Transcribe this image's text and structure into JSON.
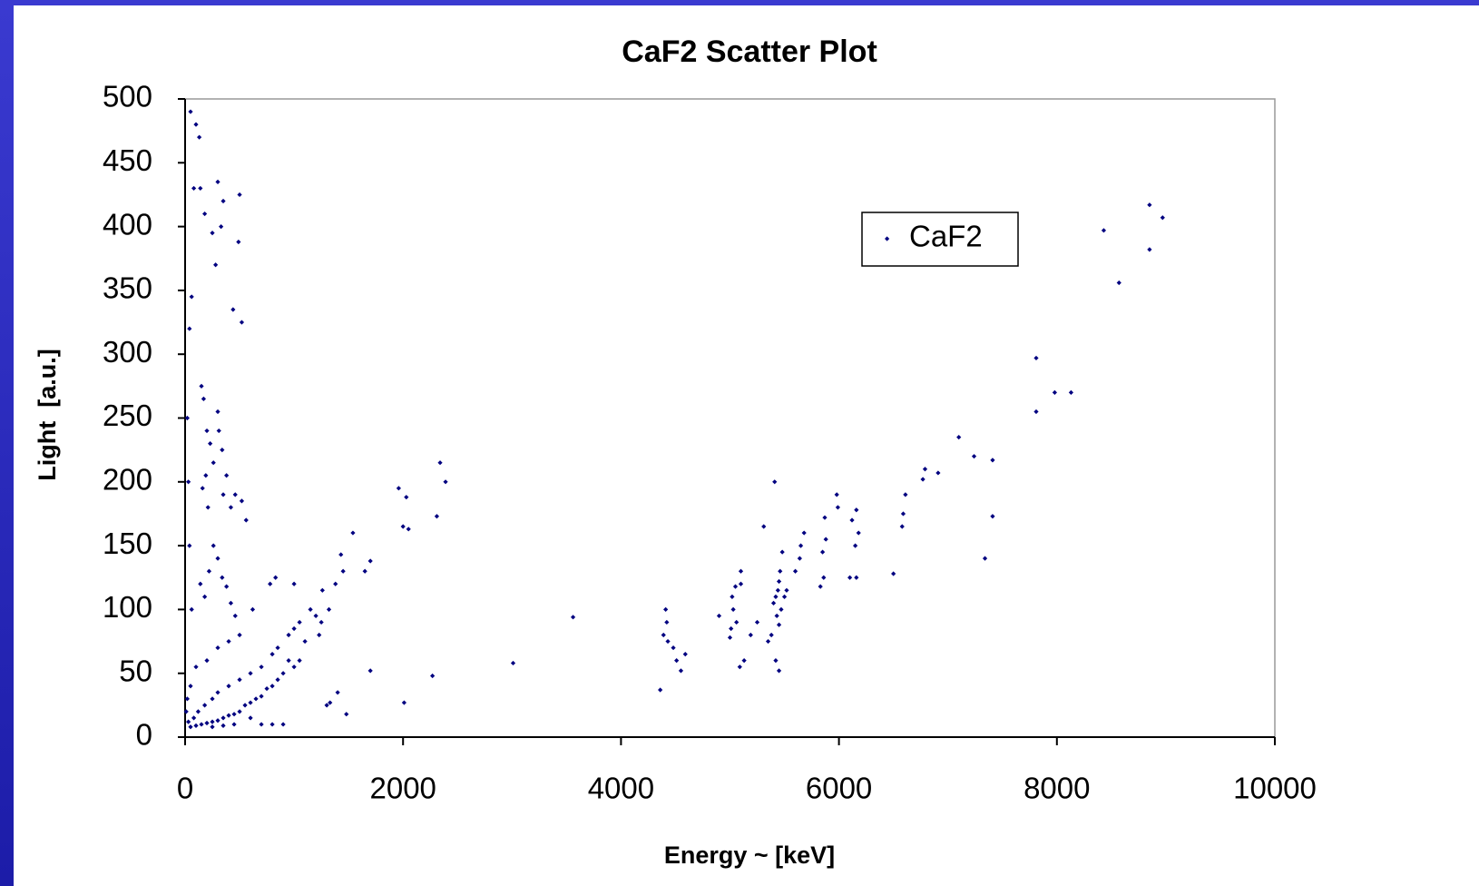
{
  "chart_data": {
    "type": "scatter",
    "title": "CaF2 Scatter Plot",
    "x_label": "Energy ~ [keV]",
    "y_label": "Light  [a.u.]",
    "xlim": [
      0,
      10000
    ],
    "xticks": [
      0,
      2000,
      4000,
      6000,
      8000,
      10000
    ],
    "ylim": [
      0,
      500
    ],
    "yticks": [
      0,
      50,
      100,
      150,
      200,
      250,
      300,
      350,
      400,
      450,
      500
    ],
    "grid": false,
    "legend": "right",
    "x": [
      8850,
      8970,
      8430,
      8850,
      8570,
      7810,
      7810,
      7980,
      8130,
      7100,
      7240,
      7410,
      7410,
      7340,
      6790,
      6770,
      6910,
      6610,
      6590,
      6580,
      6500,
      6160,
      6120,
      6180,
      6150,
      6100,
      6160,
      5980,
      5990,
      5870,
      5880,
      5850,
      5860,
      5830,
      5680,
      5650,
      5640,
      5600,
      5480,
      5460,
      5450,
      5440,
      5420,
      5400,
      5470,
      5430,
      5450,
      5500,
      5520,
      5380,
      5350,
      5420,
      5450,
      5410,
      5310,
      5250,
      5190,
      5130,
      5090,
      5020,
      5050,
      5030,
      5060,
      5010,
      5000,
      4900,
      5100,
      5100,
      4410,
      4420,
      4390,
      4430,
      4480,
      4510,
      4550,
      4590,
      4360,
      3560,
      3010,
      2390,
      2340,
      2310,
      2030,
      1960,
      2000,
      2050,
      2010,
      2270,
      1700,
      1650,
      1540,
      1430,
      1450,
      1480,
      1700,
      1330,
      1320,
      1250,
      1230,
      1200,
      1100,
      1050,
      1150,
      1260,
      1380,
      1000,
      950,
      900,
      850,
      800,
      750,
      700,
      650,
      600,
      550,
      500,
      450,
      400,
      350,
      300,
      250,
      200,
      150,
      100,
      50,
      30,
      80,
      120,
      180,
      250,
      300,
      400,
      500,
      600,
      700,
      800,
      850,
      950,
      1000,
      1050,
      780,
      830,
      1000,
      620,
      500,
      400,
      300,
      200,
      100,
      50,
      20,
      10,
      60,
      40,
      30,
      20,
      40,
      60,
      80,
      50,
      100,
      130,
      140,
      180,
      250,
      280,
      300,
      350,
      330,
      440,
      490,
      500,
      520,
      150,
      170,
      200,
      160,
      190,
      210,
      230,
      260,
      300,
      310,
      340,
      350,
      380,
      420,
      460,
      520,
      560,
      140,
      180,
      220,
      260,
      300,
      340,
      380,
      420,
      460,
      700,
      800,
      900,
      600,
      1300,
      1400,
      250,
      350,
      450
    ],
    "series": [
      {
        "name": "CaF2",
        "color": "#000080",
        "values": [
          417,
          407,
          397,
          382,
          356,
          297,
          255,
          270,
          270,
          235,
          220,
          217,
          173,
          140,
          210,
          202,
          207,
          190,
          175,
          165,
          128,
          178,
          170,
          160,
          150,
          125,
          125,
          190,
          180,
          172,
          155,
          145,
          125,
          118,
          160,
          150,
          140,
          130,
          145,
          130,
          122,
          115,
          110,
          105,
          100,
          95,
          88,
          110,
          115,
          80,
          75,
          60,
          52,
          200,
          165,
          90,
          80,
          60,
          55,
          110,
          118,
          100,
          90,
          85,
          78,
          95,
          120,
          130,
          100,
          90,
          80,
          75,
          70,
          60,
          52,
          65,
          37,
          94,
          58,
          200,
          215,
          173,
          188,
          195,
          165,
          163,
          27,
          48,
          138,
          130,
          160,
          143,
          130,
          18,
          52,
          27,
          100,
          90,
          80,
          95,
          75,
          60,
          100,
          115,
          120,
          55,
          60,
          50,
          45,
          40,
          38,
          32,
          30,
          27,
          25,
          20,
          18,
          17,
          15,
          13,
          12,
          11,
          10,
          9,
          8,
          12,
          15,
          20,
          25,
          30,
          35,
          40,
          45,
          50,
          55,
          65,
          70,
          80,
          85,
          90,
          120,
          125,
          120,
          100,
          80,
          75,
          70,
          60,
          55,
          40,
          30,
          20,
          100,
          150,
          200,
          250,
          320,
          345,
          430,
          490,
          480,
          470,
          430,
          410,
          395,
          370,
          435,
          420,
          400,
          335,
          388,
          425,
          325,
          275,
          265,
          240,
          195,
          205,
          180,
          230,
          215,
          255,
          240,
          225,
          190,
          205,
          180,
          190,
          185,
          170,
          120,
          110,
          130,
          150,
          140,
          125,
          118,
          105,
          95,
          10,
          10,
          10,
          15,
          25,
          35,
          8,
          9,
          10
        ]
      }
    ]
  }
}
